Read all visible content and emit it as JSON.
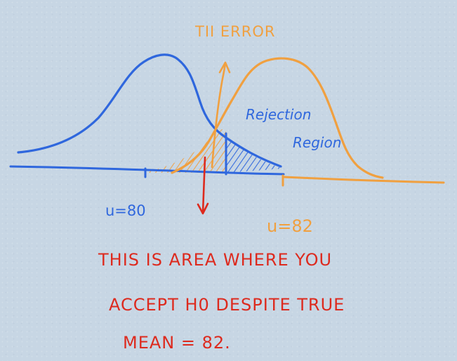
{
  "title": "TII ERROR",
  "labels": {
    "rejection_line1": "Rejection",
    "rejection_line2": "Region",
    "mean_null": "u=80",
    "mean_alt": "u=82"
  },
  "note": {
    "line1": "THIS IS AREA WHERE YOU",
    "line2": "ACCEPT H0 DESPITE TRUE",
    "line3": "MEAN = 82."
  },
  "colors": {
    "null_curve": "#2f67dd",
    "alt_curve": "#f0a040",
    "annotation": "#dd2a1e",
    "background": "#c7d6e4"
  }
}
